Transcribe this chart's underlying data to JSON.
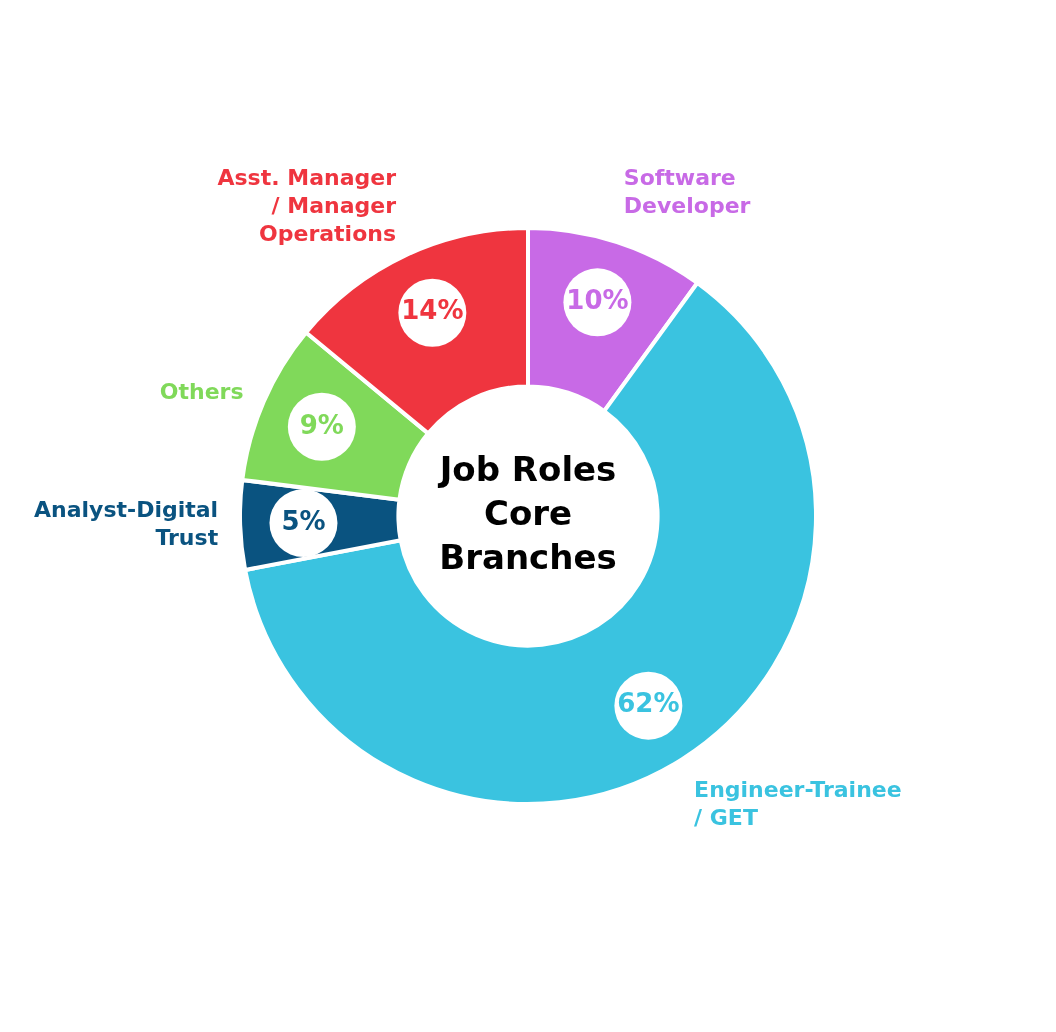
{
  "chart_data": {
    "type": "donut",
    "title": "Job Roles Core Branches",
    "categories": [
      "Software Developer",
      "Engineer-Trainee / GET",
      "Analyst-Digital Trust",
      "Others",
      "Asst. Manager / Manager Operations"
    ],
    "values": [
      10,
      62,
      5,
      9,
      14
    ],
    "colors": [
      "#c86ae6",
      "#3ac3e0",
      "#0a5380",
      "#80d95a",
      "#ef353f"
    ],
    "value_labels": [
      "10%",
      "62%",
      "5%",
      "9%",
      "14%"
    ],
    "legend": false
  }
}
